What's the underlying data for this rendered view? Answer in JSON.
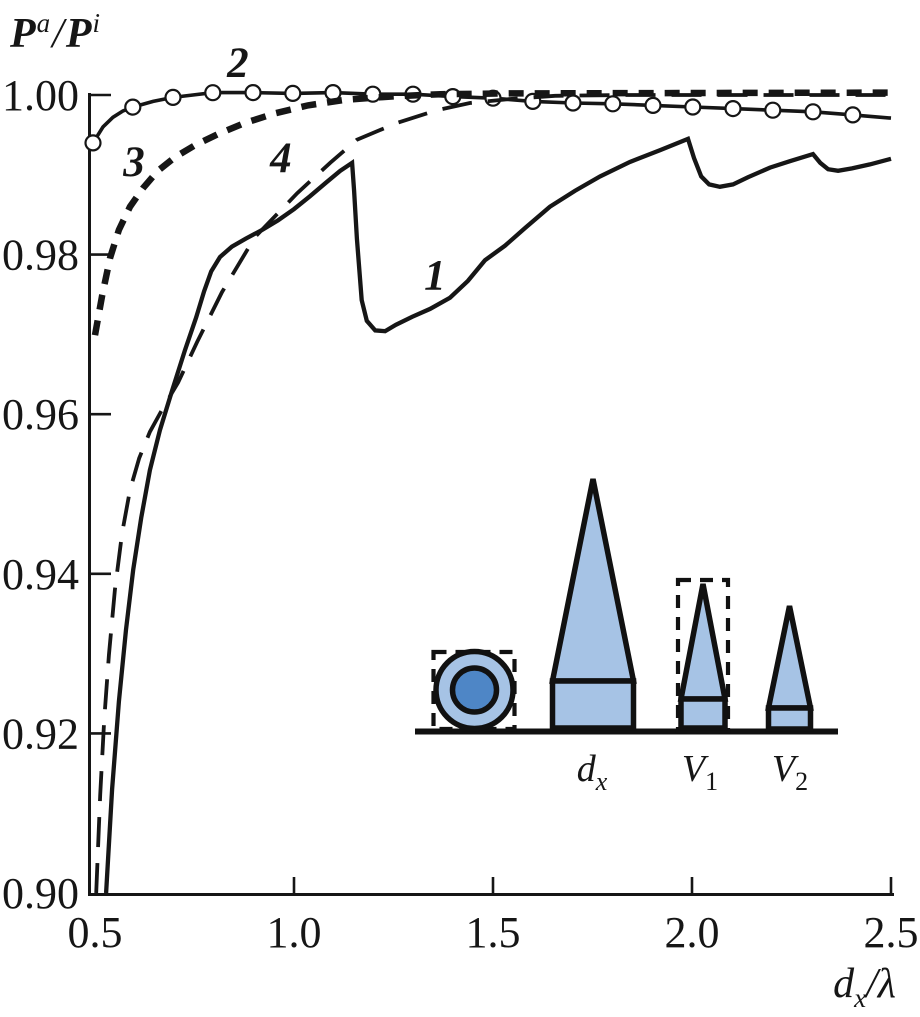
{
  "figure": {
    "background": "#ffffff",
    "ink_color": "#161616"
  },
  "axes": {
    "y_label": {
      "p1": "P",
      "sup1": "a",
      "sep": "/",
      "p2": "P",
      "sup2": "i"
    },
    "x_label": {
      "base": "d",
      "sub": "x",
      "sep": "/",
      "unit": "λ"
    },
    "x_tick_labels": [
      "0.5",
      "1.0",
      "1.5",
      "2.0",
      "2.5"
    ],
    "x_tick_values": [
      0.5,
      1.0,
      1.5,
      2.0,
      2.5
    ],
    "y_tick_labels": [
      "1.00",
      "0.98",
      "0.96",
      "0.94",
      "0.92",
      "0.90"
    ],
    "y_tick_values": [
      1.0,
      0.98,
      0.96,
      0.94,
      0.92,
      0.9
    ],
    "x_range": [
      0.5,
      2.5
    ],
    "y_range": [
      0.9,
      1.0
    ]
  },
  "chart_data": {
    "type": "line",
    "title": "",
    "xlabel": "d_x/λ",
    "ylabel": "P^a/P^i",
    "xlim": [
      0.5,
      2.5
    ],
    "ylim": [
      0.9,
      1.0
    ],
    "grid": false,
    "legend_position": "none",
    "series": [
      {
        "name": "1",
        "line_style": "solid-thick",
        "marker": "none",
        "label_pos": [
          1.354,
          0.9774
        ],
        "points": [
          [
            0.528,
            0.9
          ],
          [
            0.543,
            0.913
          ],
          [
            0.56,
            0.924
          ],
          [
            0.578,
            0.933
          ],
          [
            0.596,
            0.9405
          ],
          [
            0.616,
            0.947
          ],
          [
            0.638,
            0.953
          ],
          [
            0.663,
            0.958
          ],
          [
            0.694,
            0.963
          ],
          [
            0.726,
            0.968
          ],
          [
            0.754,
            0.9721
          ],
          [
            0.774,
            0.9754
          ],
          [
            0.792,
            0.9779
          ],
          [
            0.814,
            0.9797
          ],
          [
            0.844,
            0.981
          ],
          [
            0.879,
            0.982
          ],
          [
            0.92,
            0.9831
          ],
          [
            0.96,
            0.9843
          ],
          [
            1.0,
            0.9857
          ],
          [
            1.04,
            0.9873
          ],
          [
            1.08,
            0.989
          ],
          [
            1.116,
            0.9905
          ],
          [
            1.146,
            0.9915
          ],
          [
            1.151,
            0.988
          ],
          [
            1.158,
            0.982
          ],
          [
            1.17,
            0.9743
          ],
          [
            1.183,
            0.9717
          ],
          [
            1.204,
            0.9705
          ],
          [
            1.229,
            0.9704
          ],
          [
            1.256,
            0.9712
          ],
          [
            1.297,
            0.9722
          ],
          [
            1.342,
            0.9732
          ],
          [
            1.392,
            0.9746
          ],
          [
            1.437,
            0.9767
          ],
          [
            1.48,
            0.9793
          ],
          [
            1.53,
            0.9811
          ],
          [
            1.58,
            0.9833
          ],
          [
            1.643,
            0.986
          ],
          [
            1.706,
            0.988
          ],
          [
            1.769,
            0.9898
          ],
          [
            1.844,
            0.9916
          ],
          [
            1.92,
            0.9931
          ],
          [
            1.99,
            0.9945
          ],
          [
            2.005,
            0.9921
          ],
          [
            2.023,
            0.9898
          ],
          [
            2.043,
            0.9888
          ],
          [
            2.07,
            0.9885
          ],
          [
            2.103,
            0.9888
          ],
          [
            2.141,
            0.9897
          ],
          [
            2.196,
            0.9909
          ],
          [
            2.246,
            0.9917
          ],
          [
            2.304,
            0.9926
          ],
          [
            2.322,
            0.9915
          ],
          [
            2.342,
            0.9907
          ],
          [
            2.367,
            0.9905
          ],
          [
            2.402,
            0.9908
          ],
          [
            2.447,
            0.9913
          ],
          [
            2.5,
            0.992
          ]
        ]
      },
      {
        "name": "2",
        "line_style": "solid",
        "marker": "circle",
        "marker_x": [
          0.495,
          0.595,
          0.696,
          0.796,
          0.897,
          0.997,
          1.098,
          1.198,
          1.299,
          1.399,
          1.5,
          1.6,
          1.701,
          1.801,
          1.902,
          2.002,
          2.103,
          2.203,
          2.304,
          2.404
        ],
        "label_pos": [
          0.859,
          1.004
        ],
        "points": [
          [
            0.495,
            0.994
          ],
          [
            0.52,
            0.996
          ],
          [
            0.545,
            0.9972
          ],
          [
            0.57,
            0.998
          ],
          [
            0.596,
            0.9985
          ],
          [
            0.646,
            0.9992
          ],
          [
            0.696,
            0.9997
          ],
          [
            0.746,
            1.0
          ],
          [
            0.797,
            1.0003
          ],
          [
            0.897,
            1.0003
          ],
          [
            0.997,
            1.0002
          ],
          [
            1.098,
            1.0003
          ],
          [
            1.198,
            1.0001
          ],
          [
            1.299,
            1.0001
          ],
          [
            1.399,
            0.9998
          ],
          [
            1.5,
            0.9996
          ],
          [
            1.6,
            0.9992
          ],
          [
            1.701,
            0.999
          ],
          [
            1.801,
            0.9989
          ],
          [
            1.902,
            0.9987
          ],
          [
            2.002,
            0.9985
          ],
          [
            2.103,
            0.9983
          ],
          [
            2.203,
            0.9981
          ],
          [
            2.304,
            0.9979
          ],
          [
            2.404,
            0.9975
          ],
          [
            2.5,
            0.9971
          ]
        ]
      },
      {
        "name": "3",
        "line_style": "dash-short",
        "marker": "none",
        "label_pos": [
          0.598,
          0.9916
        ],
        "points": [
          [
            0.5,
            0.9699
          ],
          [
            0.518,
            0.9749
          ],
          [
            0.538,
            0.9796
          ],
          [
            0.56,
            0.9831
          ],
          [
            0.588,
            0.986
          ],
          [
            0.62,
            0.9883
          ],
          [
            0.658,
            0.9905
          ],
          [
            0.701,
            0.9922
          ],
          [
            0.751,
            0.9937
          ],
          [
            0.809,
            0.9951
          ],
          [
            0.877,
            0.9965
          ],
          [
            0.952,
            0.9977
          ],
          [
            1.035,
            0.9987
          ],
          [
            1.128,
            0.9994
          ],
          [
            1.241,
            0.9998
          ],
          [
            1.367,
            1.0001
          ],
          [
            1.543,
            1.0002
          ],
          [
            2.5,
            1.0003
          ]
        ]
      },
      {
        "name": "4",
        "line_style": "dash-long",
        "marker": "none",
        "label_pos": [
          0.967,
          0.9921
        ],
        "points": [
          [
            0.503,
            0.9
          ],
          [
            0.513,
            0.9123
          ],
          [
            0.523,
            0.9217
          ],
          [
            0.535,
            0.9298
          ],
          [
            0.55,
            0.938
          ],
          [
            0.568,
            0.9451
          ],
          [
            0.588,
            0.9505
          ],
          [
            0.611,
            0.9545
          ],
          [
            0.638,
            0.9578
          ],
          [
            0.671,
            0.9608
          ],
          [
            0.709,
            0.964
          ],
          [
            0.756,
            0.969
          ],
          [
            0.819,
            0.9753
          ],
          [
            0.902,
            0.9822
          ],
          [
            1.008,
            0.9877
          ],
          [
            1.091,
            0.9915
          ],
          [
            1.158,
            0.9944
          ],
          [
            1.259,
            0.9965
          ],
          [
            1.359,
            0.9981
          ],
          [
            1.442,
            0.999
          ],
          [
            1.543,
            0.9995
          ],
          [
            1.656,
            0.9999
          ],
          [
            1.832,
            1.0
          ],
          [
            2.5,
            1.0
          ]
        ]
      }
    ]
  },
  "inset": {
    "labels": [
      {
        "base": "d",
        "sub": "x"
      },
      {
        "base": "V",
        "sub": "1"
      },
      {
        "base": "V",
        "sub": "2"
      }
    ],
    "colors": {
      "fill_light": "#A6C3E5",
      "fill_dark": "#4E86C6",
      "stroke": "#111111"
    }
  }
}
